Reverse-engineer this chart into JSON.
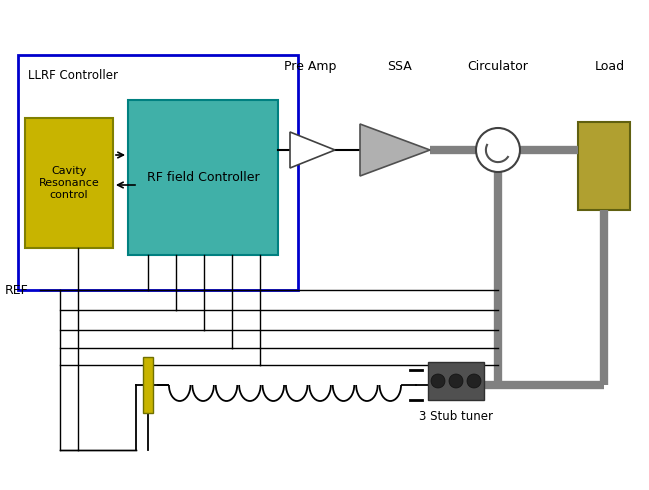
{
  "bg_color": "#ffffff",
  "lc": "#000000",
  "tlc": "#808080",
  "tlw": 6,
  "llrf_label": "LLRF Controller",
  "cavity_label": "Cavity\nResonance\ncontrol",
  "rf_field_label": "RF field Controller",
  "pre_amp_label": "Pre Amp",
  "ssa_label": "SSA",
  "circulator_label": "Circulator",
  "load_label": "Load",
  "ref_label": "REF",
  "stub_tuner_label": "3 Stub tuner",
  "cavity_color": "#c8b400",
  "cavity_ec": "#808000",
  "rf_field_color": "#40b0a8",
  "rf_field_ec": "#008080",
  "load_color": "#b0a030",
  "load_ec": "#606010",
  "llrf_ec": "#0000cc",
  "piezo_color": "#c8b400"
}
